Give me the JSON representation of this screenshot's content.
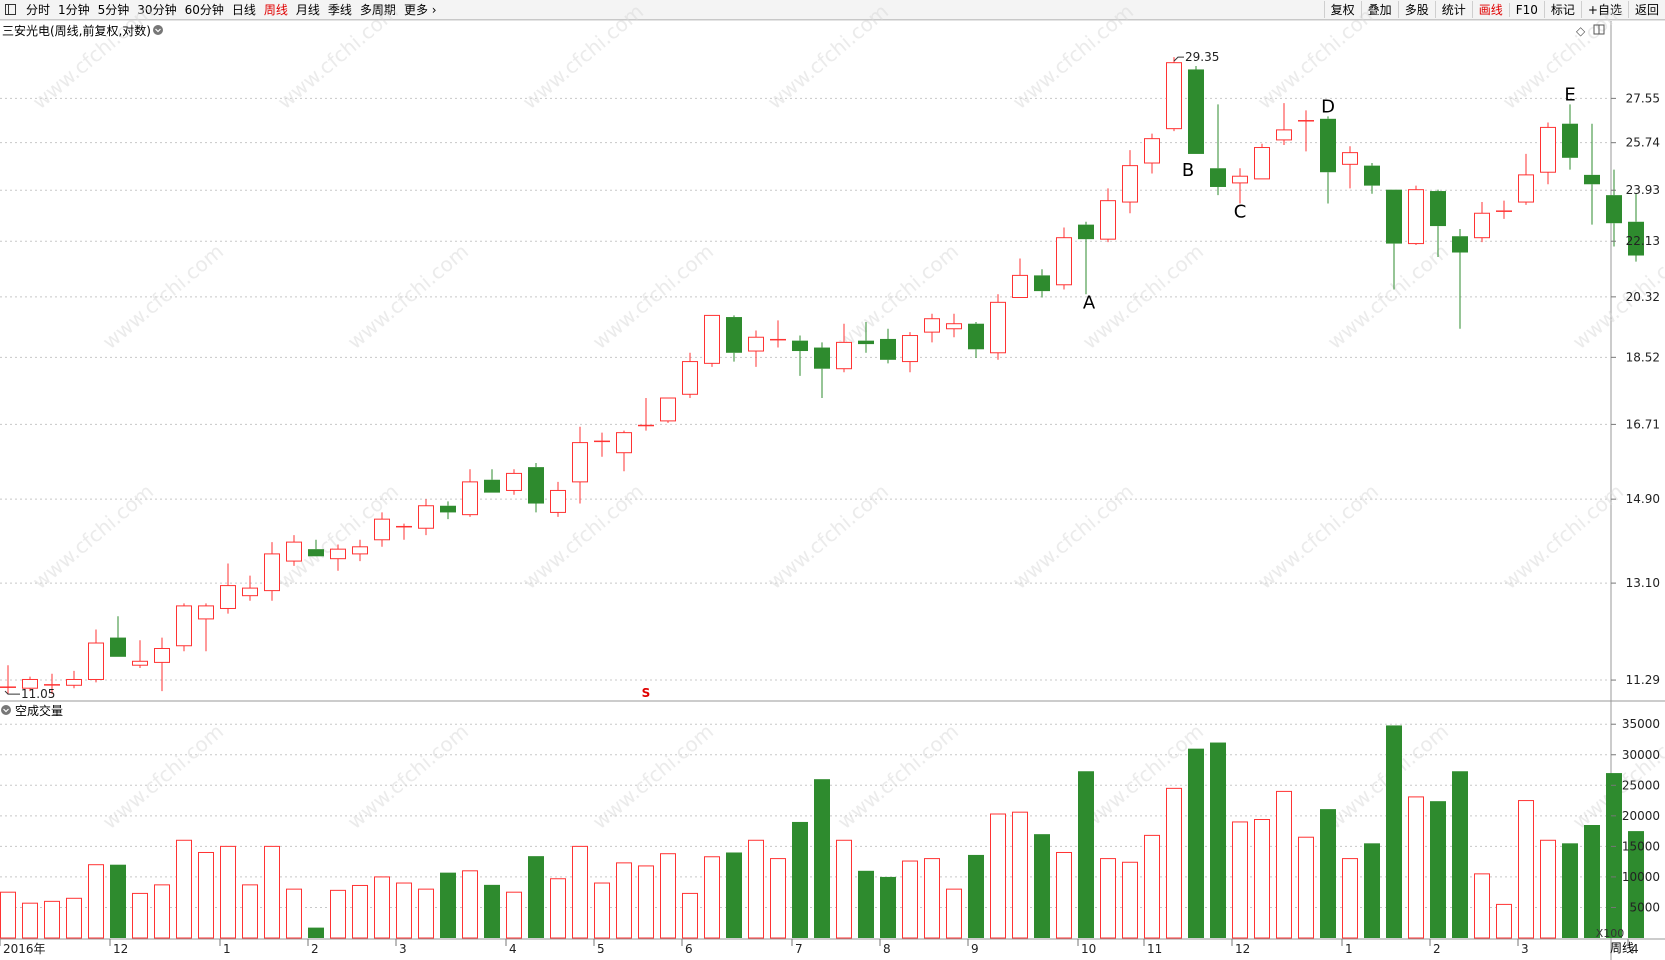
{
  "toolbar": {
    "left": [
      {
        "label": "分时",
        "active": false
      },
      {
        "label": "1分钟",
        "active": false
      },
      {
        "label": "5分钟",
        "active": false
      },
      {
        "label": "30分钟",
        "active": false
      },
      {
        "label": "60分钟",
        "active": false
      },
      {
        "label": "日线",
        "active": false
      },
      {
        "label": "周线",
        "active": true
      },
      {
        "label": "月线",
        "active": false
      },
      {
        "label": "季线",
        "active": false
      },
      {
        "label": "多周期",
        "active": false
      },
      {
        "label": "更多",
        "active": false
      }
    ],
    "right": [
      {
        "label": "复权",
        "active": false
      },
      {
        "label": "叠加",
        "active": false
      },
      {
        "label": "多股",
        "active": false
      },
      {
        "label": "统计",
        "active": false
      },
      {
        "label": "画线",
        "active": true
      },
      {
        "label": "F10",
        "active": false
      },
      {
        "label": "标记",
        "active": false
      },
      {
        "label": "+自选",
        "active": false
      },
      {
        "label": "返回",
        "active": false
      }
    ]
  },
  "chart_data": [
    {
      "type": "candlestick",
      "title": "三安光电(周线,前复权,对数)",
      "log_scale": true,
      "y_ticks": [
        11.29,
        13.1,
        14.9,
        16.71,
        18.52,
        20.32,
        22.13,
        23.93,
        25.74,
        27.55
      ],
      "ylim": [
        10.95,
        29.9
      ],
      "max_label": "29.35",
      "min_label": "11.05",
      "watermark": "www.cfchi.com",
      "colors": {
        "up": "#ff3333",
        "down": "#2e8b2e"
      },
      "candles": [
        {
          "o": 11.18,
          "h": 11.55,
          "l": 11.05,
          "c": 11.18
        },
        {
          "o": 11.15,
          "h": 11.35,
          "l": 11.1,
          "c": 11.3
        },
        {
          "o": 11.22,
          "h": 11.4,
          "l": 11.05,
          "c": 11.22
        },
        {
          "o": 11.2,
          "h": 11.45,
          "l": 11.15,
          "c": 11.3
        },
        {
          "o": 11.3,
          "h": 12.2,
          "l": 11.25,
          "c": 11.95
        },
        {
          "o": 12.05,
          "h": 12.45,
          "l": 11.7,
          "c": 11.7
        },
        {
          "o": 11.55,
          "h": 12.0,
          "l": 11.5,
          "c": 11.62
        },
        {
          "o": 11.6,
          "h": 12.05,
          "l": 11.1,
          "c": 11.85
        },
        {
          "o": 11.9,
          "h": 12.7,
          "l": 11.8,
          "c": 12.65
        },
        {
          "o": 12.4,
          "h": 12.7,
          "l": 11.8,
          "c": 12.65
        },
        {
          "o": 12.6,
          "h": 13.5,
          "l": 12.5,
          "c": 13.05
        },
        {
          "o": 12.85,
          "h": 13.25,
          "l": 12.75,
          "c": 13.0
        },
        {
          "o": 12.95,
          "h": 13.95,
          "l": 12.75,
          "c": 13.7
        },
        {
          "o": 13.55,
          "h": 14.1,
          "l": 13.45,
          "c": 13.95
        },
        {
          "o": 13.8,
          "h": 14.0,
          "l": 13.65,
          "c": 13.65
        },
        {
          "o": 13.6,
          "h": 13.9,
          "l": 13.35,
          "c": 13.8
        },
        {
          "o": 13.7,
          "h": 14.0,
          "l": 13.55,
          "c": 13.85
        },
        {
          "o": 14.0,
          "h": 14.6,
          "l": 13.85,
          "c": 14.45
        },
        {
          "o": 14.3,
          "h": 14.35,
          "l": 14.0,
          "c": 14.3
        },
        {
          "o": 14.25,
          "h": 14.9,
          "l": 14.1,
          "c": 14.75
        },
        {
          "o": 14.75,
          "h": 14.85,
          "l": 14.45,
          "c": 14.6
        },
        {
          "o": 14.55,
          "h": 15.6,
          "l": 14.5,
          "c": 15.3
        },
        {
          "o": 15.35,
          "h": 15.6,
          "l": 15.05,
          "c": 15.05
        },
        {
          "o": 15.1,
          "h": 15.6,
          "l": 15.0,
          "c": 15.5
        },
        {
          "o": 15.65,
          "h": 15.75,
          "l": 14.6,
          "c": 14.8
        },
        {
          "o": 14.6,
          "h": 15.3,
          "l": 14.5,
          "c": 15.1
        },
        {
          "o": 15.3,
          "h": 16.65,
          "l": 14.8,
          "c": 16.25
        },
        {
          "o": 16.3,
          "h": 16.5,
          "l": 15.9,
          "c": 16.3
        },
        {
          "o": 16.0,
          "h": 16.55,
          "l": 15.55,
          "c": 16.5
        },
        {
          "o": 16.7,
          "h": 17.4,
          "l": 16.55,
          "c": 16.7
        },
        {
          "o": 16.8,
          "h": 17.4,
          "l": 16.75,
          "c": 17.4
        },
        {
          "o": 17.5,
          "h": 18.65,
          "l": 17.4,
          "c": 18.4
        },
        {
          "o": 18.35,
          "h": 19.75,
          "l": 18.25,
          "c": 19.75
        },
        {
          "o": 19.7,
          "h": 19.75,
          "l": 18.4,
          "c": 18.65
        },
        {
          "o": 18.7,
          "h": 19.3,
          "l": 18.25,
          "c": 19.1
        },
        {
          "o": 19.05,
          "h": 19.6,
          "l": 18.8,
          "c": 19.05
        },
        {
          "o": 19.0,
          "h": 19.15,
          "l": 18.0,
          "c": 18.7
        },
        {
          "o": 18.8,
          "h": 18.95,
          "l": 17.4,
          "c": 18.2
        },
        {
          "o": 18.2,
          "h": 19.5,
          "l": 18.1,
          "c": 18.95
        },
        {
          "o": 19.0,
          "h": 19.55,
          "l": 18.65,
          "c": 18.9
        },
        {
          "o": 19.05,
          "h": 19.35,
          "l": 18.35,
          "c": 18.45
        },
        {
          "o": 18.4,
          "h": 19.25,
          "l": 18.1,
          "c": 19.15
        },
        {
          "o": 19.25,
          "h": 19.8,
          "l": 18.95,
          "c": 19.65
        },
        {
          "o": 19.35,
          "h": 19.8,
          "l": 19.1,
          "c": 19.5
        },
        {
          "o": 19.5,
          "h": 19.55,
          "l": 18.5,
          "c": 18.75
        },
        {
          "o": 18.65,
          "h": 20.4,
          "l": 18.45,
          "c": 20.15
        },
        {
          "o": 20.3,
          "h": 21.55,
          "l": 20.3,
          "c": 21.0
        },
        {
          "o": 21.0,
          "h": 21.2,
          "l": 20.3,
          "c": 20.5
        },
        {
          "o": 20.7,
          "h": 22.6,
          "l": 20.55,
          "c": 22.25
        },
        {
          "o": 22.7,
          "h": 22.8,
          "l": 20.4,
          "c": 22.2
        },
        {
          "o": 22.2,
          "h": 24.0,
          "l": 22.1,
          "c": 23.55
        },
        {
          "o": 23.5,
          "h": 25.45,
          "l": 23.1,
          "c": 24.85
        },
        {
          "o": 24.95,
          "h": 26.1,
          "l": 24.55,
          "c": 25.9
        },
        {
          "o": 26.3,
          "h": 29.35,
          "l": 26.2,
          "c": 29.1
        },
        {
          "o": 28.8,
          "h": 28.95,
          "l": 25.3,
          "c": 25.3
        },
        {
          "o": 24.75,
          "h": 27.3,
          "l": 23.75,
          "c": 24.05
        },
        {
          "o": 24.2,
          "h": 24.75,
          "l": 23.45,
          "c": 24.45
        },
        {
          "o": 24.35,
          "h": 25.7,
          "l": 24.35,
          "c": 25.55
        },
        {
          "o": 25.85,
          "h": 27.35,
          "l": 25.65,
          "c": 26.25
        },
        {
          "o": 26.65,
          "h": 27.05,
          "l": 25.4,
          "c": 26.65
        },
        {
          "o": 26.7,
          "h": 26.8,
          "l": 23.45,
          "c": 24.6
        },
        {
          "o": 24.9,
          "h": 25.6,
          "l": 24.0,
          "c": 25.35
        },
        {
          "o": 24.85,
          "h": 24.95,
          "l": 23.8,
          "c": 24.1
        },
        {
          "o": 23.95,
          "h": 23.95,
          "l": 20.55,
          "c": 22.05
        },
        {
          "o": 22.05,
          "h": 24.1,
          "l": 22.0,
          "c": 23.95
        },
        {
          "o": 23.9,
          "h": 23.95,
          "l": 21.6,
          "c": 22.65
        },
        {
          "o": 22.3,
          "h": 22.55,
          "l": 19.35,
          "c": 21.75
        },
        {
          "o": 22.25,
          "h": 23.5,
          "l": 22.1,
          "c": 23.1
        },
        {
          "o": 23.2,
          "h": 23.55,
          "l": 22.9,
          "c": 23.2
        },
        {
          "o": 23.5,
          "h": 25.3,
          "l": 23.4,
          "c": 24.5
        },
        {
          "o": 24.6,
          "h": 26.55,
          "l": 24.15,
          "c": 26.35
        },
        {
          "o": 26.5,
          "h": 27.3,
          "l": 24.7,
          "c": 25.15
        },
        {
          "o": 24.5,
          "h": 26.5,
          "l": 22.7,
          "c": 24.15
        },
        {
          "o": 23.75,
          "h": 24.7,
          "l": 21.95,
          "c": 22.75
        },
        {
          "o": 22.8,
          "h": 23.8,
          "l": 21.45,
          "c": 21.65
        }
      ],
      "annotations": [
        {
          "text": "A",
          "index": 49
        },
        {
          "text": "B",
          "index": 54
        },
        {
          "text": "C",
          "index": 56
        },
        {
          "text": "D",
          "index": 60
        },
        {
          "text": "E",
          "index": 71
        }
      ],
      "dividend_mark": "S",
      "dividend_index": 29
    },
    {
      "type": "bar",
      "title": "空成交量",
      "unit_label": "X100",
      "y_ticks": [
        5000,
        10000,
        15000,
        20000,
        25000,
        30000,
        35000
      ],
      "ylim": [
        0,
        37000
      ],
      "volumes": [
        7500,
        5700,
        6000,
        6500,
        12000,
        12000,
        7300,
        8700,
        16000,
        14000,
        15000,
        8700,
        15000,
        8000,
        1700,
        7800,
        8600,
        10000,
        9000,
        8000,
        10700,
        11000,
        8700,
        7500,
        13400,
        9700,
        15000,
        9000,
        12300,
        11800,
        13800,
        7300,
        13300,
        14000,
        16000,
        13000,
        19000,
        26000,
        16000,
        11000,
        10000,
        12600,
        13000,
        8000,
        13600,
        20300,
        20600,
        17000,
        14000,
        27300,
        13000,
        12400,
        16800,
        24500,
        31000,
        32000,
        19000,
        19400,
        24000,
        16500,
        21100,
        13000,
        15500,
        34800,
        23100,
        22400,
        27300,
        10500,
        5500,
        22500,
        16000,
        15500,
        18500,
        27000,
        17500
      ]
    }
  ],
  "x_axis": {
    "labels": [
      {
        "text": "2016年",
        "index": 0
      },
      {
        "text": "12",
        "index": 5
      },
      {
        "text": "1",
        "index": 10
      },
      {
        "text": "2",
        "index": 14
      },
      {
        "text": "3",
        "index": 18
      },
      {
        "text": "4",
        "index": 23
      },
      {
        "text": "5",
        "index": 27
      },
      {
        "text": "6",
        "index": 31
      },
      {
        "text": "7",
        "index": 36
      },
      {
        "text": "8",
        "index": 40
      },
      {
        "text": "9",
        "index": 44
      },
      {
        "text": "10",
        "index": 49
      },
      {
        "text": "11",
        "index": 52
      },
      {
        "text": "12",
        "index": 56
      },
      {
        "text": "1",
        "index": 61
      },
      {
        "text": "2",
        "index": 65
      },
      {
        "text": "3",
        "index": 69
      },
      {
        "text": "4",
        "index": 74
      }
    ],
    "period_label": "周线"
  }
}
